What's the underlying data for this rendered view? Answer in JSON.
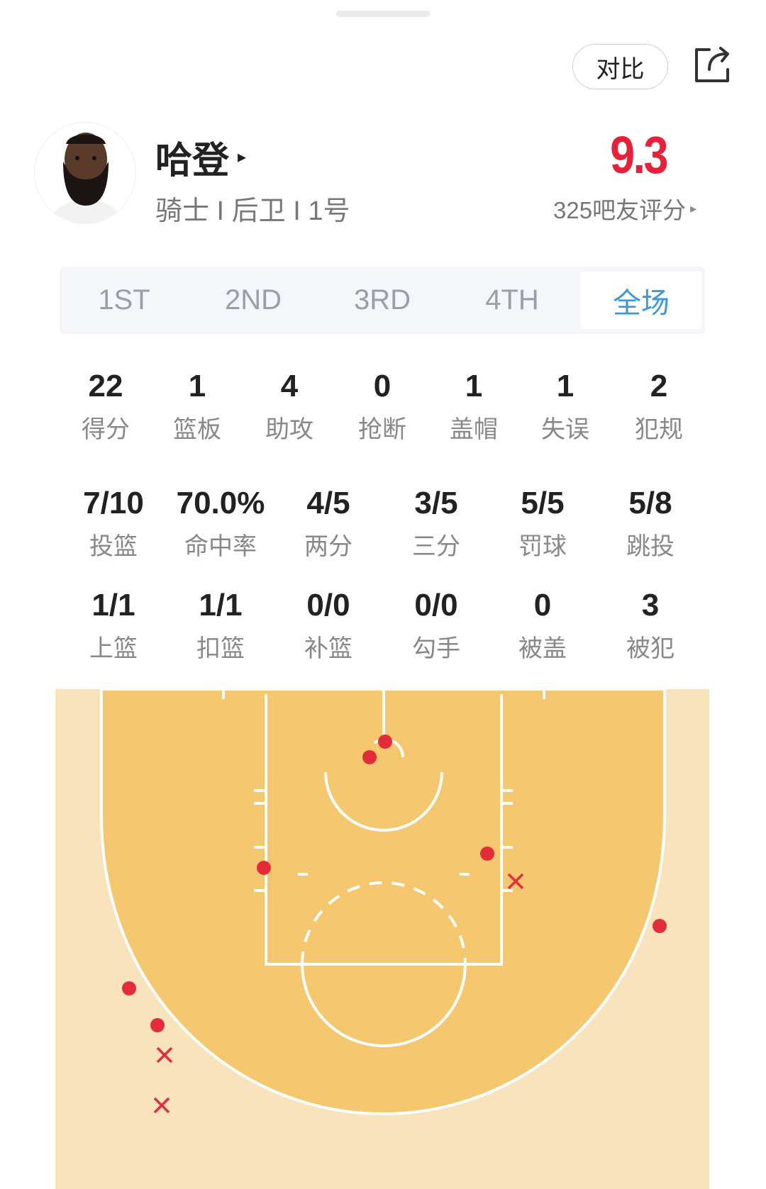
{
  "header": {
    "compare_label": "对比",
    "share_icon": "share-icon"
  },
  "player": {
    "name": "哈登",
    "name_arrow": "▸",
    "info": "骑士 I 后卫 I 1号",
    "rating": "9.3",
    "rating_count_label": "325吧友评分",
    "rating_arrow": "▸",
    "rating_color": "#e8203a"
  },
  "tabs": [
    {
      "label": "1ST",
      "active": false
    },
    {
      "label": "2ND",
      "active": false
    },
    {
      "label": "3RD",
      "active": false
    },
    {
      "label": "4TH",
      "active": false
    },
    {
      "label": "全场",
      "active": true
    }
  ],
  "stats_row1": [
    {
      "value": "22",
      "label": "得分"
    },
    {
      "value": "1",
      "label": "篮板"
    },
    {
      "value": "4",
      "label": "助攻"
    },
    {
      "value": "0",
      "label": "抢断"
    },
    {
      "value": "1",
      "label": "盖帽"
    },
    {
      "value": "1",
      "label": "失误"
    },
    {
      "value": "2",
      "label": "犯规"
    }
  ],
  "stats_row2": [
    {
      "value": "7/10",
      "label": "投篮"
    },
    {
      "value": "70.0%",
      "label": "命中率"
    },
    {
      "value": "4/5",
      "label": "两分"
    },
    {
      "value": "3/5",
      "label": "三分"
    },
    {
      "value": "5/5",
      "label": "罚球"
    },
    {
      "value": "5/8",
      "label": "跳投"
    }
  ],
  "stats_row3": [
    {
      "value": "1/1",
      "label": "上篮"
    },
    {
      "value": "1/1",
      "label": "扣篮"
    },
    {
      "value": "0/0",
      "label": "补篮"
    },
    {
      "value": "0/0",
      "label": "勾手"
    },
    {
      "value": "0",
      "label": "被盖"
    },
    {
      "value": "3",
      "label": "被犯"
    }
  ],
  "shot_chart": {
    "shots": [
      "made",
      "made",
      "made",
      "made",
      "made",
      "made",
      "made",
      "missed",
      "missed",
      "missed"
    ],
    "colors": {
      "paint": "#f5c870",
      "outside": "#f9e3bd",
      "lines": "#ffffff",
      "shot": "#e52c3a"
    }
  }
}
